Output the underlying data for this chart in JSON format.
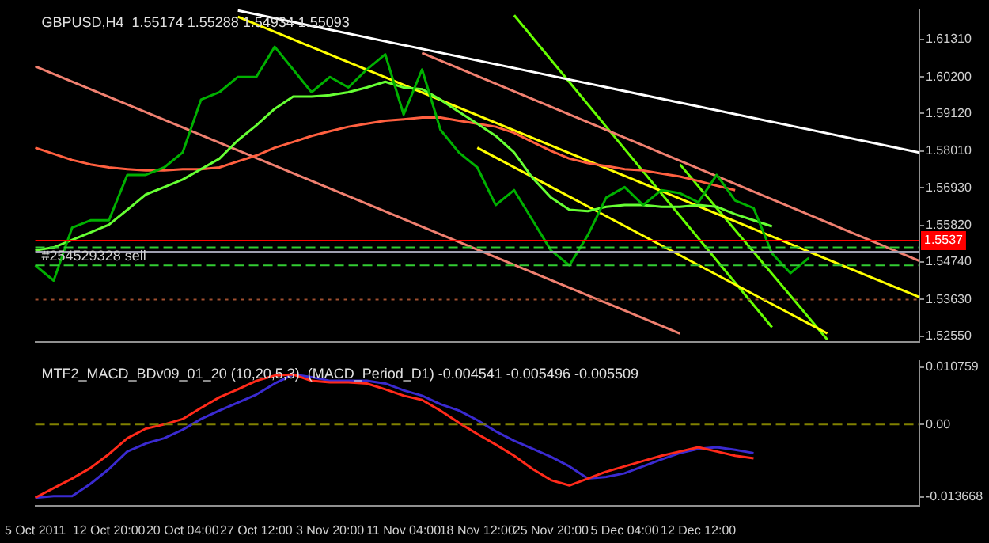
{
  "chart_data": [
    {
      "type": "line",
      "title": "GBPUSD,H4  1.55174 1.55288 1.54934 1.55093",
      "series": [
        {
          "color": "#00b000",
          "values": [
            1.5464,
            1.5419,
            1.5575,
            1.5597,
            1.5597,
            1.5731,
            1.5731,
            1.5753,
            1.5797,
            1.5953,
            1.5975,
            1.602,
            1.602,
            1.6109,
            1.6042,
            1.5975,
            1.602,
            1.5989,
            1.6042,
            1.6087,
            1.5909,
            1.6042,
            1.5864,
            1.5797,
            1.5753,
            1.5642,
            1.5686,
            1.5597,
            1.5508,
            1.5464,
            1.5553,
            1.5664,
            1.5695,
            1.5642,
            1.5686,
            1.5677,
            1.565,
            1.5731,
            1.5655,
            1.5633,
            1.5499,
            1.5441,
            1.5486,
            null,
            null,
            null,
            null,
            null,
            null
          ]
        },
        {
          "color": "#66ff33",
          "values": [
            1.5508,
            1.5517,
            1.5539,
            1.5561,
            1.5584,
            1.5628,
            1.5673,
            1.5695,
            1.5717,
            1.5748,
            1.5779,
            1.5833,
            1.5877,
            1.5926,
            1.5962,
            1.5962,
            1.5966,
            1.5975,
            1.5989,
            1.6006,
            1.5989,
            1.5984,
            1.5953,
            1.5917,
            1.5882,
            1.5846,
            1.5797,
            1.5722,
            1.5664,
            1.5628,
            1.5624,
            1.5637,
            1.5642,
            1.5642,
            1.5637,
            1.5637,
            1.5642,
            1.5637,
            1.5615,
            1.5597,
            1.5579,
            null,
            null,
            null,
            null,
            null,
            null,
            null,
            null
          ]
        },
        {
          "color": "#ff6040",
          "values": [
            1.5811,
            1.5793,
            1.5775,
            1.5762,
            1.5753,
            1.5748,
            1.5744,
            1.5744,
            1.5748,
            1.5748,
            1.5753,
            1.5771,
            1.5788,
            1.5811,
            1.5828,
            1.5846,
            1.586,
            1.5873,
            1.5882,
            1.5891,
            1.5895,
            1.59,
            1.59,
            1.5891,
            1.5882,
            1.5873,
            1.5855,
            1.5828,
            1.5802,
            1.5779,
            1.5766,
            1.5757,
            1.5748,
            1.5744,
            1.5735,
            1.5726,
            1.5713,
            1.5699,
            1.5686,
            null,
            null,
            null,
            null,
            null,
            null,
            null,
            null,
            null,
            null
          ]
        },
        {
          "color": "#ffffff",
          "values": [
            null,
            null,
            null,
            null,
            null,
            null,
            null,
            null,
            null,
            null,
            null,
            1.6216,
            null,
            null,
            null,
            null,
            null,
            null,
            null,
            null,
            null,
            null,
            null,
            null,
            null,
            null,
            null,
            null,
            null,
            null,
            null,
            null,
            null,
            null,
            null,
            null,
            null,
            null,
            null,
            null,
            null,
            null,
            null,
            null,
            null,
            null,
            null,
            null,
            1.5797
          ]
        },
        {
          "color": "#f08070",
          "values": [
            null,
            null,
            null,
            null,
            null,
            null,
            null,
            null,
            null,
            null,
            null,
            null,
            null,
            null,
            null,
            null,
            null,
            null,
            null,
            null,
            null,
            1.6091,
            null,
            null,
            null,
            null,
            null,
            null,
            null,
            null,
            null,
            null,
            null,
            null,
            null,
            null,
            null,
            null,
            null,
            null,
            null,
            null,
            null,
            null,
            null,
            null,
            null,
            null,
            1.5477
          ]
        },
        {
          "color": "#f08070",
          "values": [
            1.6051,
            null,
            null,
            null,
            null,
            null,
            null,
            null,
            null,
            null,
            null,
            null,
            null,
            null,
            null,
            null,
            null,
            null,
            null,
            null,
            null,
            null,
            null,
            null,
            null,
            null,
            null,
            null,
            null,
            null,
            null,
            null,
            null,
            null,
            null,
            1.5263,
            null,
            null,
            null,
            null,
            null,
            null,
            null,
            null,
            null,
            null,
            null,
            null,
            null
          ]
        },
        {
          "color": "#ffff00",
          "values": [
            null,
            null,
            null,
            null,
            null,
            null,
            null,
            null,
            null,
            null,
            null,
            1.6198,
            null,
            null,
            null,
            null,
            null,
            null,
            null,
            null,
            null,
            null,
            null,
            null,
            null,
            null,
            null,
            null,
            null,
            null,
            null,
            null,
            null,
            null,
            null,
            null,
            null,
            null,
            null,
            null,
            null,
            null,
            null,
            null,
            null,
            null,
            null,
            null,
            1.537
          ]
        },
        {
          "color": "#ffff00",
          "values": [
            null,
            null,
            null,
            null,
            null,
            null,
            null,
            null,
            null,
            null,
            null,
            null,
            null,
            null,
            null,
            null,
            null,
            null,
            null,
            null,
            null,
            null,
            null,
            null,
            1.5811,
            null,
            null,
            null,
            null,
            null,
            null,
            null,
            null,
            null,
            null,
            null,
            null,
            null,
            null,
            null,
            null,
            null,
            null,
            1.5263,
            null,
            null,
            null,
            null,
            null
          ]
        },
        {
          "color": "#66ff00",
          "values": [
            null,
            null,
            null,
            null,
            null,
            null,
            null,
            null,
            null,
            null,
            null,
            null,
            null,
            null,
            null,
            null,
            null,
            null,
            null,
            null,
            null,
            null,
            null,
            null,
            null,
            null,
            1.6202,
            null,
            null,
            null,
            null,
            null,
            null,
            null,
            null,
            null,
            null,
            null,
            null,
            null,
            1.5281,
            null,
            null,
            null,
            null,
            null,
            null,
            null,
            null
          ]
        },
        {
          "color": "#66ff00",
          "values": [
            null,
            null,
            null,
            null,
            null,
            null,
            null,
            null,
            null,
            null,
            null,
            null,
            null,
            null,
            null,
            null,
            null,
            null,
            null,
            null,
            null,
            null,
            null,
            null,
            null,
            null,
            null,
            null,
            null,
            null,
            null,
            null,
            null,
            null,
            null,
            1.5762,
            null,
            null,
            null,
            null,
            null,
            null,
            null,
            1.5245,
            null,
            null,
            null,
            null,
            null
          ]
        }
      ],
      "ylim": [
        1.5237,
        1.622
      ],
      "yticks": [
        {
          "value": 1.6131,
          "label": "1.61310"
        },
        {
          "value": 1.602,
          "label": "1.60200"
        },
        {
          "value": 1.5912,
          "label": "1.59120"
        },
        {
          "value": 1.5801,
          "label": "1.58010"
        },
        {
          "value": 1.5693,
          "label": "1.56930"
        },
        {
          "value": 1.5582,
          "label": "1.55820"
        },
        {
          "value": 1.5474,
          "label": "1.54740"
        },
        {
          "value": 1.5363,
          "label": "1.53630"
        },
        {
          "value": 1.5255,
          "label": "1.52550"
        }
      ],
      "ref_lines": [
        {
          "axis": "y",
          "value": 1.5537,
          "label": "1.5537",
          "color": "#ff0000",
          "line_style": "solid"
        },
        {
          "axis": "y",
          "value": 1.5517,
          "color": "#33cc33",
          "line_style": "dashed"
        },
        {
          "axis": "y",
          "value": 1.5504,
          "color": "#a0a0b0",
          "line_style": "solid"
        },
        {
          "axis": "y",
          "value": 1.5464,
          "color": "#33cc33",
          "line_style": "dashed"
        },
        {
          "axis": "y",
          "value": 1.5363,
          "color": "#a05030",
          "line_style": "dotted"
        }
      ],
      "annotations": [
        {
          "text": "#254529328 sell",
          "y": 1.5464
        }
      ],
      "tick_labels": "y",
      "grid": false,
      "legend": false,
      "marker": "none"
    },
    {
      "type": "line",
      "title": "MTF2_MACD_BDv09_01_20 (10,20,5,3)  (MACD_Period_D1) -0.004541 -0.005496 -0.005509",
      "categories": [
        "5 Oct 2011",
        null,
        null,
        null,
        "12 Oct 20:00",
        null,
        null,
        null,
        "20 Oct 04:00",
        null,
        null,
        null,
        "27 Oct 12:00",
        null,
        null,
        null,
        "3 Nov 20:00",
        null,
        null,
        null,
        "11 Nov 04:00",
        null,
        null,
        null,
        "18 Nov 12:00",
        null,
        null,
        null,
        "25 Nov 20:00",
        null,
        null,
        null,
        "5 Dec 04:00",
        null,
        null,
        null,
        "12 Dec 12:00",
        null,
        null,
        null,
        null,
        null,
        null,
        null,
        null,
        null,
        null,
        null,
        null
      ],
      "series": [
        {
          "color": "#ff2a1a",
          "values": [
            -0.0138,
            -0.012,
            -0.0102,
            -0.0082,
            -0.0056,
            -0.0026,
            -0.0008,
            0,
            0.001,
            0.0031,
            0.0051,
            0.0066,
            0.0082,
            0.0092,
            0.0094,
            0.0082,
            0.0079,
            0.0079,
            0.0077,
            0.0066,
            0.0054,
            0.0046,
            0.0026,
            0.0003,
            -0.0018,
            -0.0038,
            -0.0059,
            -0.0084,
            -0.0105,
            -0.0115,
            -0.0102,
            -0.0089,
            -0.0079,
            -0.0069,
            -0.0059,
            -0.0051,
            -0.0043,
            -0.0051,
            -0.0059,
            -0.0064,
            null,
            null,
            null,
            null,
            null,
            null,
            null,
            null,
            null
          ]
        },
        {
          "color": "#3a2ad0",
          "values": [
            -0.0138,
            -0.0135,
            -0.0135,
            -0.0112,
            -0.0084,
            -0.0051,
            -0.0036,
            -0.0026,
            -0.001,
            0.001,
            0.0026,
            0.0041,
            0.0056,
            0.0077,
            0.0094,
            0.0089,
            0.0082,
            0.0082,
            0.0082,
            0.0077,
            0.0064,
            0.0054,
            0.0038,
            0.0026,
            0.0008,
            -0.0013,
            -0.0031,
            -0.0046,
            -0.0061,
            -0.0079,
            -0.0102,
            -0.0099,
            -0.0092,
            -0.0079,
            -0.0066,
            -0.0054,
            -0.0046,
            -0.0043,
            -0.0048,
            -0.0054,
            null,
            null,
            null,
            null,
            null,
            null,
            null,
            null,
            null
          ]
        }
      ],
      "ylim": [
        -0.0153,
        0.012
      ],
      "yticks": [
        {
          "value": 0.010759,
          "label": "0.010759"
        },
        {
          "value": 0,
          "label": "0.00"
        },
        {
          "value": -0.013668,
          "label": "-0.013668"
        }
      ],
      "ref_lines": [
        {
          "axis": "y",
          "value": 0,
          "color": "#808000",
          "line_style": "dashed"
        }
      ],
      "grid": false,
      "legend": false,
      "marker": "none"
    }
  ]
}
